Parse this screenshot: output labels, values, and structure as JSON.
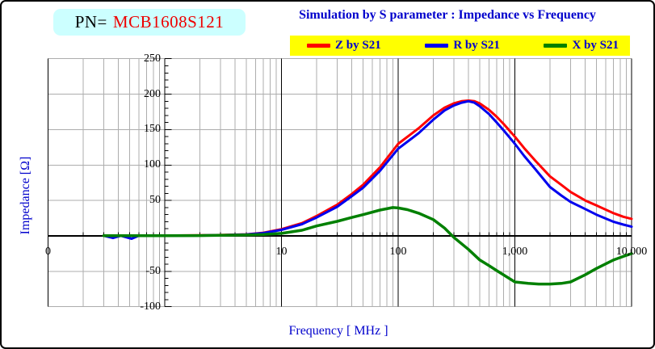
{
  "window": {
    "bg": "#FFFFFF",
    "border_color": "#000000"
  },
  "pn_box": {
    "prefix": "PN=",
    "part_number": "MCB1608S121",
    "bg": "#CCFFFF",
    "prefix_color": "#000000",
    "part_color": "#EE0000"
  },
  "title": {
    "text": "Simulation by S parameter : Impedance vs Frequency",
    "color": "#0000CC"
  },
  "legend": {
    "bg": "#FFFF00",
    "text_color": "#0000CC",
    "items": [
      {
        "label": "Z by S21",
        "color": "#FF0000"
      },
      {
        "label": "R by S21",
        "color": "#0000EE"
      },
      {
        "label": "X by S21",
        "color": "#008000"
      }
    ]
  },
  "axes": {
    "y_title": "Impedance [Ω]",
    "x_title": "Frequency [ MHz ]",
    "title_color": "#0000CC",
    "grid_color": "#ADADAD",
    "axis_color": "#000000",
    "y_tick_labels": [
      "250",
      "200",
      "150",
      "100",
      "50",
      "-50",
      "-100"
    ],
    "x_tick_labels": [
      {
        "text": "0",
        "f": 0.1
      },
      {
        "text": "10",
        "f": 10
      },
      {
        "text": "100",
        "f": 100
      },
      {
        "text": "1,000",
        "f": 1000
      },
      {
        "text": "10,000",
        "f": 10000
      }
    ]
  },
  "chart_data": {
    "type": "line",
    "title": "Simulation by S parameter : Impedance vs Frequency",
    "xlabel": "Frequency [ MHz ]",
    "ylabel": "Impedance [Ω]",
    "x_scale": "log",
    "xlim": [
      0.1,
      10000
    ],
    "ylim": [
      -100,
      250
    ],
    "grid": true,
    "legend_position": "top",
    "y_gridlines": [
      250,
      200,
      150,
      100,
      50,
      -50,
      -100
    ],
    "x_decade_lines": [
      10,
      100,
      1000,
      10000
    ],
    "y_axis_at_mhz": 1,
    "series": [
      {
        "name": "Z by S21",
        "color": "#FF0000",
        "width": 3,
        "points": [
          [
            0.3,
            0.4
          ],
          [
            0.5,
            0.45
          ],
          [
            1,
            0.5
          ],
          [
            2,
            0.8
          ],
          [
            3,
            1.2
          ],
          [
            5,
            2.2
          ],
          [
            7,
            4.5
          ],
          [
            10,
            9.5
          ],
          [
            15,
            18
          ],
          [
            20,
            28
          ],
          [
            30,
            44
          ],
          [
            40,
            59
          ],
          [
            50,
            72
          ],
          [
            70,
            97
          ],
          [
            100,
            130
          ],
          [
            150,
            152
          ],
          [
            200,
            170
          ],
          [
            250,
            181
          ],
          [
            300,
            187
          ],
          [
            350,
            190
          ],
          [
            400,
            191
          ],
          [
            450,
            190
          ],
          [
            500,
            187
          ],
          [
            600,
            178
          ],
          [
            700,
            168
          ],
          [
            800,
            158
          ],
          [
            1000,
            140
          ],
          [
            1200,
            124
          ],
          [
            1500,
            106
          ],
          [
            2000,
            84
          ],
          [
            2500,
            72
          ],
          [
            3000,
            62
          ],
          [
            4000,
            50
          ],
          [
            5000,
            43
          ],
          [
            7000,
            32
          ],
          [
            8500,
            27
          ],
          [
            10000,
            24
          ]
        ]
      },
      {
        "name": "R by S21",
        "color": "#0000EE",
        "width": 3,
        "points": [
          [
            0.3,
            0.2
          ],
          [
            0.36,
            -3
          ],
          [
            0.42,
            0.2
          ],
          [
            0.52,
            -4
          ],
          [
            0.6,
            0.2
          ],
          [
            1,
            0.3
          ],
          [
            2,
            0.6
          ],
          [
            3,
            1
          ],
          [
            5,
            2
          ],
          [
            7,
            4
          ],
          [
            10,
            8.5
          ],
          [
            15,
            16.5
          ],
          [
            20,
            26
          ],
          [
            30,
            41
          ],
          [
            40,
            56
          ],
          [
            50,
            68
          ],
          [
            70,
            92
          ],
          [
            100,
            123
          ],
          [
            150,
            145
          ],
          [
            200,
            164
          ],
          [
            250,
            177
          ],
          [
            300,
            184
          ],
          [
            350,
            188
          ],
          [
            400,
            190
          ],
          [
            450,
            188
          ],
          [
            500,
            183
          ],
          [
            600,
            172
          ],
          [
            700,
            160
          ],
          [
            800,
            149
          ],
          [
            1000,
            130
          ],
          [
            1200,
            113
          ],
          [
            1500,
            94
          ],
          [
            2000,
            69
          ],
          [
            2500,
            57
          ],
          [
            3000,
            48
          ],
          [
            4000,
            38
          ],
          [
            5000,
            30
          ],
          [
            7000,
            20
          ],
          [
            8500,
            16
          ],
          [
            10000,
            13
          ]
        ]
      },
      {
        "name": "X by S21",
        "color": "#008000",
        "width": 3.5,
        "points": [
          [
            0.3,
            0.2
          ],
          [
            0.5,
            0.2
          ],
          [
            1,
            0.3
          ],
          [
            2,
            0.5
          ],
          [
            3,
            0.8
          ],
          [
            5,
            1.3
          ],
          [
            7,
            2
          ],
          [
            10,
            3.5
          ],
          [
            15,
            8
          ],
          [
            20,
            14
          ],
          [
            30,
            20.5
          ],
          [
            40,
            26
          ],
          [
            50,
            30
          ],
          [
            70,
            36.5
          ],
          [
            90,
            40
          ],
          [
            100,
            39.5
          ],
          [
            120,
            37
          ],
          [
            150,
            32
          ],
          [
            200,
            23
          ],
          [
            250,
            11
          ],
          [
            300,
            -2
          ],
          [
            400,
            -19
          ],
          [
            500,
            -34
          ],
          [
            600,
            -42
          ],
          [
            700,
            -49
          ],
          [
            800,
            -55
          ],
          [
            1000,
            -65
          ],
          [
            1300,
            -67
          ],
          [
            1600,
            -68
          ],
          [
            2000,
            -68
          ],
          [
            2500,
            -67
          ],
          [
            3000,
            -65
          ],
          [
            4000,
            -55
          ],
          [
            5000,
            -46
          ],
          [
            7000,
            -34
          ],
          [
            8500,
            -29
          ],
          [
            10000,
            -25
          ]
        ]
      }
    ]
  }
}
